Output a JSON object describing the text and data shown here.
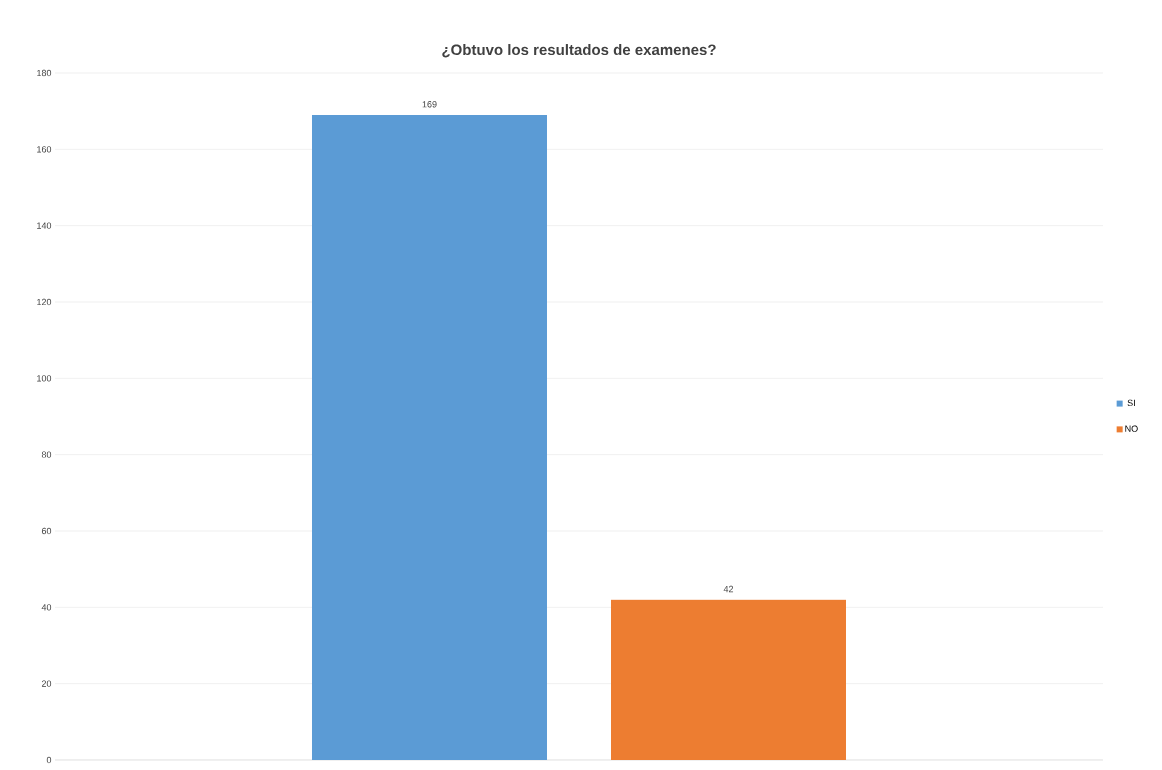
{
  "chart_data": {
    "type": "bar",
    "title": "¿Obtuvo los resultados de examenes?",
    "categories": [
      null
    ],
    "series": [
      {
        "name": "SI",
        "color": "#5b9bd5",
        "values": [
          169
        ]
      },
      {
        "name": "NO",
        "color": "#ed7d31",
        "values": [
          42
        ]
      }
    ],
    "ylim": [
      0,
      180
    ],
    "yticks": [
      0,
      20,
      40,
      60,
      80,
      100,
      120,
      140,
      160,
      180
    ],
    "grid": "y",
    "legend": "right",
    "data_labels": true
  }
}
